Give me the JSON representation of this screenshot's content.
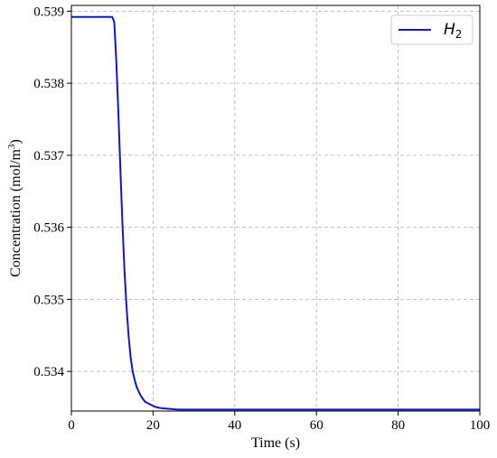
{
  "chart_data": {
    "type": "line",
    "title": "",
    "xlabel": "Time (s)",
    "ylabel": "Concentration  (mol/m",
    "ylabel_superscript": "3",
    "ylabel_suffix": ")",
    "xlim": [
      0,
      100
    ],
    "ylim": [
      0.53345,
      0.53908
    ],
    "xticks": [
      0,
      20,
      40,
      60,
      80,
      100
    ],
    "xtick_labels": [
      "0",
      "20",
      "40",
      "60",
      "80",
      "100"
    ],
    "yticks": [
      0.534,
      0.535,
      0.536,
      0.537,
      0.538,
      0.539
    ],
    "ytick_labels": [
      "0.534",
      "0.535",
      "0.536",
      "0.537",
      "0.538",
      "0.539"
    ],
    "grid": true,
    "legend_position": "top-right",
    "series": [
      {
        "name": "H",
        "name_subscript": "2",
        "color": "#1515c8",
        "x": [
          0,
          5,
          10,
          10.5,
          11,
          11.5,
          12,
          12.5,
          13,
          13.5,
          14,
          14.5,
          15,
          15.5,
          16,
          17,
          18,
          19,
          20,
          21,
          22,
          24,
          26,
          30,
          40,
          60,
          80,
          100
        ],
        "y": [
          0.53892,
          0.53892,
          0.53892,
          0.53885,
          0.5383,
          0.5376,
          0.5368,
          0.53605,
          0.5354,
          0.5349,
          0.5345,
          0.5342,
          0.534,
          0.53388,
          0.53378,
          0.53366,
          0.53358,
          0.53355,
          0.53352,
          0.5335,
          0.53349,
          0.53348,
          0.53347,
          0.53347,
          0.53347,
          0.53347,
          0.53347,
          0.53347
        ]
      }
    ]
  }
}
